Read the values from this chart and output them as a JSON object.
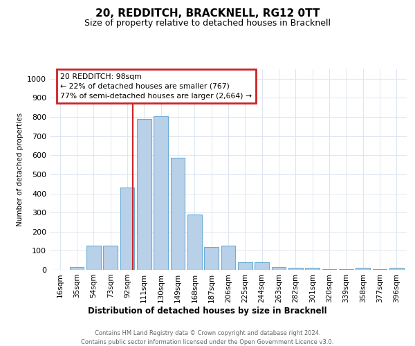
{
  "title": "20, REDDITCH, BRACKNELL, RG12 0TT",
  "subtitle": "Size of property relative to detached houses in Bracknell",
  "xlabel": "Distribution of detached houses by size in Bracknell",
  "ylabel": "Number of detached properties",
  "footnote1": "Contains HM Land Registry data © Crown copyright and database right 2024.",
  "footnote2": "Contains public sector information licensed under the Open Government Licence v3.0.",
  "categories": [
    "16sqm",
    "35sqm",
    "54sqm",
    "73sqm",
    "92sqm",
    "111sqm",
    "130sqm",
    "149sqm",
    "168sqm",
    "187sqm",
    "206sqm",
    "225sqm",
    "244sqm",
    "263sqm",
    "282sqm",
    "301sqm",
    "320sqm",
    "339sqm",
    "358sqm",
    "377sqm",
    "396sqm"
  ],
  "values": [
    0,
    15,
    125,
    125,
    430,
    790,
    805,
    585,
    290,
    120,
    125,
    40,
    40,
    15,
    10,
    10,
    5,
    5,
    10,
    5,
    10
  ],
  "bar_color": "#b8d0e8",
  "bar_edge_color": "#6aacd6",
  "red_line_color": "#cc2222",
  "annotation_text": "20 REDDITCH: 98sqm\n← 22% of detached houses are smaller (767)\n77% of semi-detached houses are larger (2,664) →",
  "annotation_box_color": "#cc2222",
  "ylim": [
    0,
    1050
  ],
  "yticks": [
    0,
    100,
    200,
    300,
    400,
    500,
    600,
    700,
    800,
    900,
    1000
  ],
  "grid_color": "#dde5f0",
  "title_fontsize": 11,
  "subtitle_fontsize": 9
}
